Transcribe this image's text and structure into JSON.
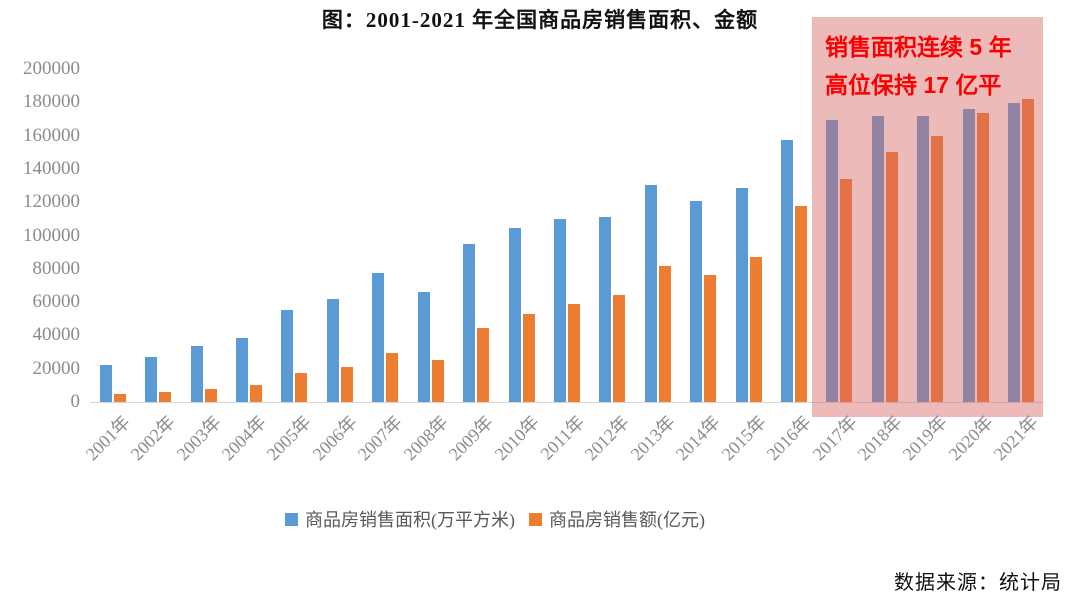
{
  "title": "图：2001-2021 年全国商品房销售面积、金额",
  "annotation": {
    "line1": "销售面积连续 5 年",
    "line2": "高位保持 17 亿平"
  },
  "source": "数据来源：统计局",
  "legend": {
    "area_label": "商品房销售面积(万平方米)",
    "amount_label": "商品房销售额(亿元)"
  },
  "colors": {
    "area_blue": "#5B9BD5",
    "amount_orange": "#ED7D31",
    "highlight_fill": "rgba(214,102,102,0.45)",
    "annotation_red": "#FA0000",
    "axis_gray": "#8C8C8C"
  },
  "chart_data": {
    "type": "bar",
    "title": "图：2001-2021 年全国商品房销售面积、金额",
    "categories": [
      "2001年",
      "2002年",
      "2003年",
      "2004年",
      "2005年",
      "2006年",
      "2007年",
      "2008年",
      "2009年",
      "2010年",
      "2011年",
      "2012年",
      "2013年",
      "2014年",
      "2015年",
      "2016年",
      "2017年",
      "2018年",
      "2019年",
      "2020年",
      "2021年"
    ],
    "series": [
      {
        "name": "商品房销售面积(万平方米)",
        "color": "#5B9BD5",
        "values": [
          22412,
          26808,
          33718,
          38232,
          55486,
          61857,
          77355,
          65970,
          94755,
          104765,
          109946,
          111304,
          130551,
          120649,
          128495,
          157349,
          169408,
          171654,
          171558,
          176086,
          179433
        ]
      },
      {
        "name": "商品房销售额(亿元)",
        "color": "#ED7D31",
        "values": [
          4863,
          6032,
          7956,
          10376,
          17576,
          20826,
          29604,
          25068,
          44355,
          52721,
          59119,
          64456,
          81428,
          76292,
          87281,
          117627,
          133701,
          149973,
          159725,
          173613,
          181930
        ]
      }
    ],
    "ylim": [
      0,
      200000
    ],
    "y_ticks": [
      0,
      20000,
      40000,
      60000,
      80000,
      100000,
      120000,
      140000,
      160000,
      180000,
      200000
    ],
    "grid": false,
    "legend_position": "bottom",
    "highlight": {
      "from": "2017年",
      "to": "2021年",
      "from_index": 16,
      "to_index": 20,
      "label": "销售面积连续 5 年高位保持 17 亿平"
    }
  }
}
